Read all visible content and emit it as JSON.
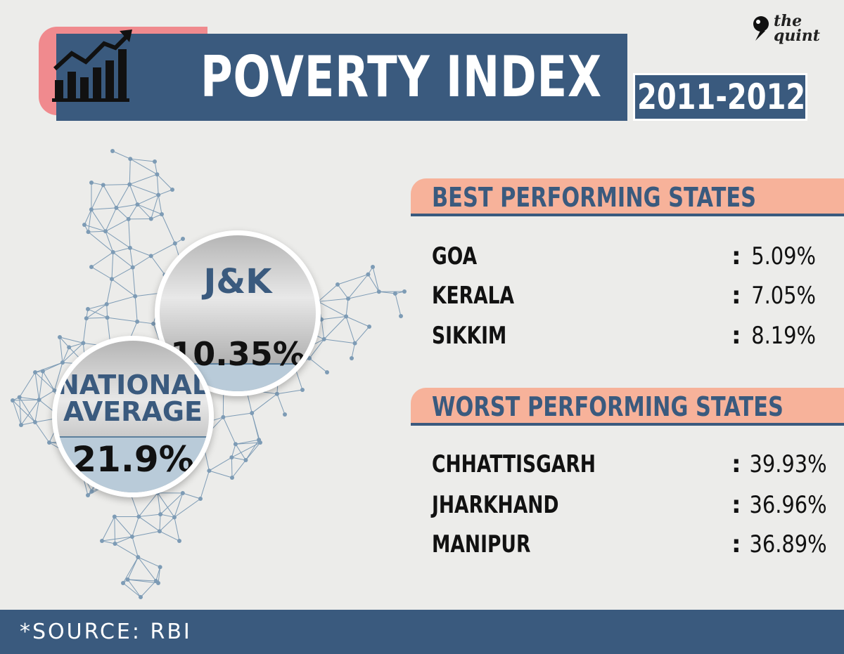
{
  "header": {
    "title": "POVERTY INDEX",
    "year": "2011-2012",
    "icon": "trending-chart-icon"
  },
  "logo": {
    "line1": "the",
    "line2": "quint"
  },
  "highlights": {
    "jk": {
      "label": "J&K",
      "value": "10.35%"
    },
    "national": {
      "label": "NATIONAL AVERAGE",
      "value": "21.9%"
    }
  },
  "best": {
    "title": "BEST PERFORMING STATES",
    "rows": [
      {
        "state": "GOA",
        "value": "5.09%"
      },
      {
        "state": "KERALA",
        "value": "7.05%"
      },
      {
        "state": "SIKKIM",
        "value": "8.19%"
      }
    ]
  },
  "worst": {
    "title": "WORST PERFORMING STATES",
    "rows": [
      {
        "state": "CHHATTISGARH",
        "value": "39.93%"
      },
      {
        "state": "JHARKHAND",
        "value": "36.96%"
      },
      {
        "state": "MANIPUR",
        "value": "36.89%"
      }
    ]
  },
  "footer": {
    "source": "*SOURCE: RBI"
  },
  "colors": {
    "navy": "#3a5a7e",
    "pink": "#f08a8e",
    "peach": "#f7b29a",
    "map_line": "#7d9bb5"
  }
}
